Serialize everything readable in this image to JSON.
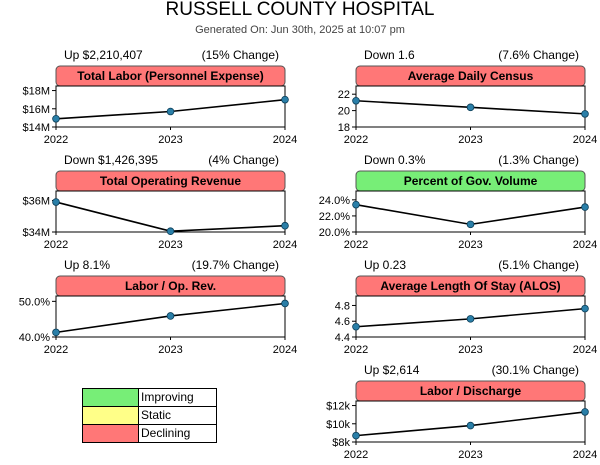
{
  "header": {
    "title": "RUSSELL COUNTY HOSPITAL",
    "subtitle": "Generated On: Jun 30th, 2025 at 10:07 pm"
  },
  "colors": {
    "improving": "#77ee77",
    "static": "#ffff88",
    "declining": "#ff7777",
    "line": "#000000",
    "marker": "#2a7fa8"
  },
  "legend": [
    {
      "label": "Improving",
      "color": "#77ee77"
    },
    {
      "label": "Static",
      "color": "#ffff88"
    },
    {
      "label": "Declining",
      "color": "#ff7777"
    }
  ],
  "chart_data": [
    {
      "type": "line",
      "title": "Total Labor (Personnel Expense)",
      "status": "declining",
      "change": "Up $2,210,407",
      "pct": "(15% Change)",
      "x": [
        "2022",
        "2023",
        "2024"
      ],
      "values": [
        14.9,
        15.7,
        17.0
      ],
      "ylim": [
        14,
        18.5
      ],
      "yticks": [
        14,
        16,
        18
      ],
      "yticklabels": [
        "$14M",
        "$16M",
        "$18M"
      ]
    },
    {
      "type": "line",
      "title": "Average Daily Census",
      "status": "declining",
      "change": "Down 1.6",
      "pct": "(7.6% Change)",
      "x": [
        "2022",
        "2023",
        "2024"
      ],
      "values": [
        21.2,
        20.4,
        19.6
      ],
      "ylim": [
        18,
        23
      ],
      "yticks": [
        18,
        20,
        22
      ],
      "yticklabels": [
        "18",
        "20",
        "22"
      ]
    },
    {
      "type": "line",
      "title": "Total Operating Revenue",
      "status": "declining",
      "change": "Down $1,426,395",
      "pct": "(4% Change)",
      "x": [
        "2022",
        "2023",
        "2024"
      ],
      "values": [
        35.9,
        34.05,
        34.4
      ],
      "ylim": [
        34,
        36.6
      ],
      "yticks": [
        34,
        36
      ],
      "yticklabels": [
        "$34M",
        "$36M"
      ]
    },
    {
      "type": "line",
      "title": "Percent of Gov. Volume",
      "status": "improving",
      "change": "Down 0.3%",
      "pct": "(1.3% Change)",
      "x": [
        "2022",
        "2023",
        "2024"
      ],
      "values": [
        23.4,
        20.95,
        23.1
      ],
      "ylim": [
        20,
        25.1
      ],
      "yticks": [
        20,
        22,
        24
      ],
      "yticklabels": [
        "20.0%",
        "22.0%",
        "24.0%"
      ]
    },
    {
      "type": "line",
      "title": "Labor / Op. Rev.",
      "status": "declining",
      "change": "Up 8.1%",
      "pct": "(19.7% Change)",
      "x": [
        "2022",
        "2023",
        "2024"
      ],
      "values": [
        41.3,
        45.9,
        49.4
      ],
      "ylim": [
        40,
        51.5
      ],
      "yticks": [
        40,
        50
      ],
      "yticklabels": [
        "40.0%",
        "50.0%"
      ]
    },
    {
      "type": "line",
      "title": "Average Length Of Stay (ALOS)",
      "status": "declining",
      "change": "Up 0.23",
      "pct": "(5.1% Change)",
      "x": [
        "2022",
        "2023",
        "2024"
      ],
      "values": [
        4.53,
        4.63,
        4.76
      ],
      "ylim": [
        4.4,
        4.92
      ],
      "yticks": [
        4.4,
        4.6,
        4.8
      ],
      "yticklabels": [
        "4.4",
        "4.6",
        "4.8"
      ]
    },
    {
      "type": "line",
      "title": "Labor / Discharge",
      "status": "declining",
      "change": "Up $2,614",
      "pct": "(30.1% Change)",
      "x": [
        "2022",
        "2023",
        "2024"
      ],
      "values": [
        8.7,
        9.8,
        11.3
      ],
      "ylim": [
        8,
        12.5
      ],
      "yticks": [
        8,
        10,
        12
      ],
      "yticklabels": [
        "$8k",
        "$10k",
        "$12k"
      ]
    }
  ]
}
